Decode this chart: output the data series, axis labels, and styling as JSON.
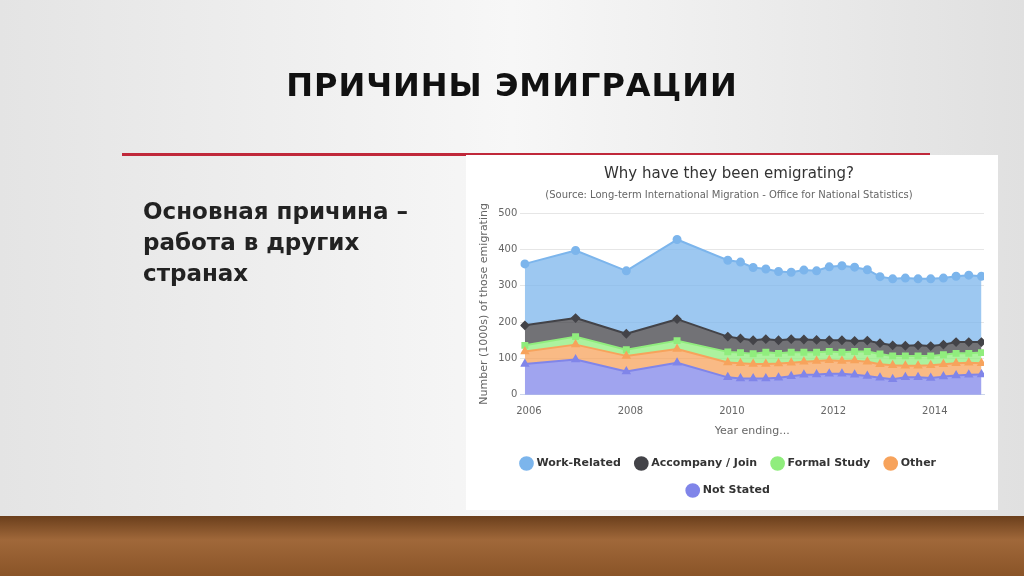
{
  "chart_data": {
    "type": "area",
    "stacked": true,
    "title": "Why have they been emigrating?",
    "subtitle": "(Source: Long-term International Migration - Office for National Statistics)",
    "xlabel": "Year ending...",
    "ylabel": "Number (1000s) of those emigrating",
    "annotations": [
      "ПРИЧИНЫ ЭМИГРАЦИИ",
      "Основная причина – работа в других странах"
    ],
    "x": [
      2005.92,
      2006.92,
      2007.92,
      2008.92,
      2009.92,
      2010.17,
      2010.42,
      2010.67,
      2010.92,
      2011.17,
      2011.42,
      2011.67,
      2011.92,
      2012.17,
      2012.42,
      2012.67,
      2012.92,
      2013.17,
      2013.42,
      2013.67,
      2013.92,
      2014.17,
      2014.42,
      2014.67,
      2014.92
    ],
    "xlim": [
      2005.83,
      2014.97
    ],
    "xticks": [
      2006,
      2008,
      2010,
      2012,
      2014
    ],
    "ylim": [
      0,
      500
    ],
    "yticks": [
      0,
      100,
      200,
      300,
      400,
      500
    ],
    "grid": "y",
    "legend": "bottom",
    "series": [
      {
        "name": "Not Stated",
        "color": "#8085e9",
        "marker": "triangle",
        "values": [
          85,
          97,
          64,
          88,
          48,
          45,
          45,
          45,
          47,
          51,
          55,
          56,
          58,
          58,
          55,
          52,
          47,
          43,
          48,
          48,
          46,
          50,
          53,
          55,
          56
        ]
      },
      {
        "name": "Other",
        "color": "#f7a35c",
        "marker": "triangle",
        "values": [
          34,
          41,
          43,
          38,
          41,
          42,
          40,
          40,
          39,
          37,
          36,
          37,
          37,
          35,
          39,
          39,
          37,
          38,
          32,
          32,
          35,
          34,
          34,
          33,
          31
        ]
      },
      {
        "name": "Formal Study",
        "color": "#90ed7d",
        "marker": "square",
        "values": [
          17,
          22,
          17,
          23,
          29,
          29,
          28,
          32,
          28,
          29,
          26,
          24,
          24,
          24,
          25,
          28,
          28,
          26,
          27,
          27,
          26,
          26,
          27,
          26,
          29
        ]
      },
      {
        "name": "Accompany / Join",
        "color": "#434348",
        "marker": "diamond",
        "values": [
          55,
          51,
          44,
          59,
          42,
          39,
          37,
          36,
          36,
          36,
          35,
          34,
          31,
          33,
          29,
          30,
          30,
          29,
          28,
          29,
          27,
          28,
          31,
          31,
          29
        ]
      },
      {
        "name": "Work-Related",
        "color": "#7cb5ec",
        "marker": "circle",
        "values": [
          169,
          186,
          173,
          219,
          210,
          210,
          200,
          193,
          189,
          184,
          191,
          190,
          202,
          205,
          203,
          195,
          183,
          183,
          186,
          183,
          185,
          183,
          181,
          184,
          181
        ]
      }
    ]
  }
}
